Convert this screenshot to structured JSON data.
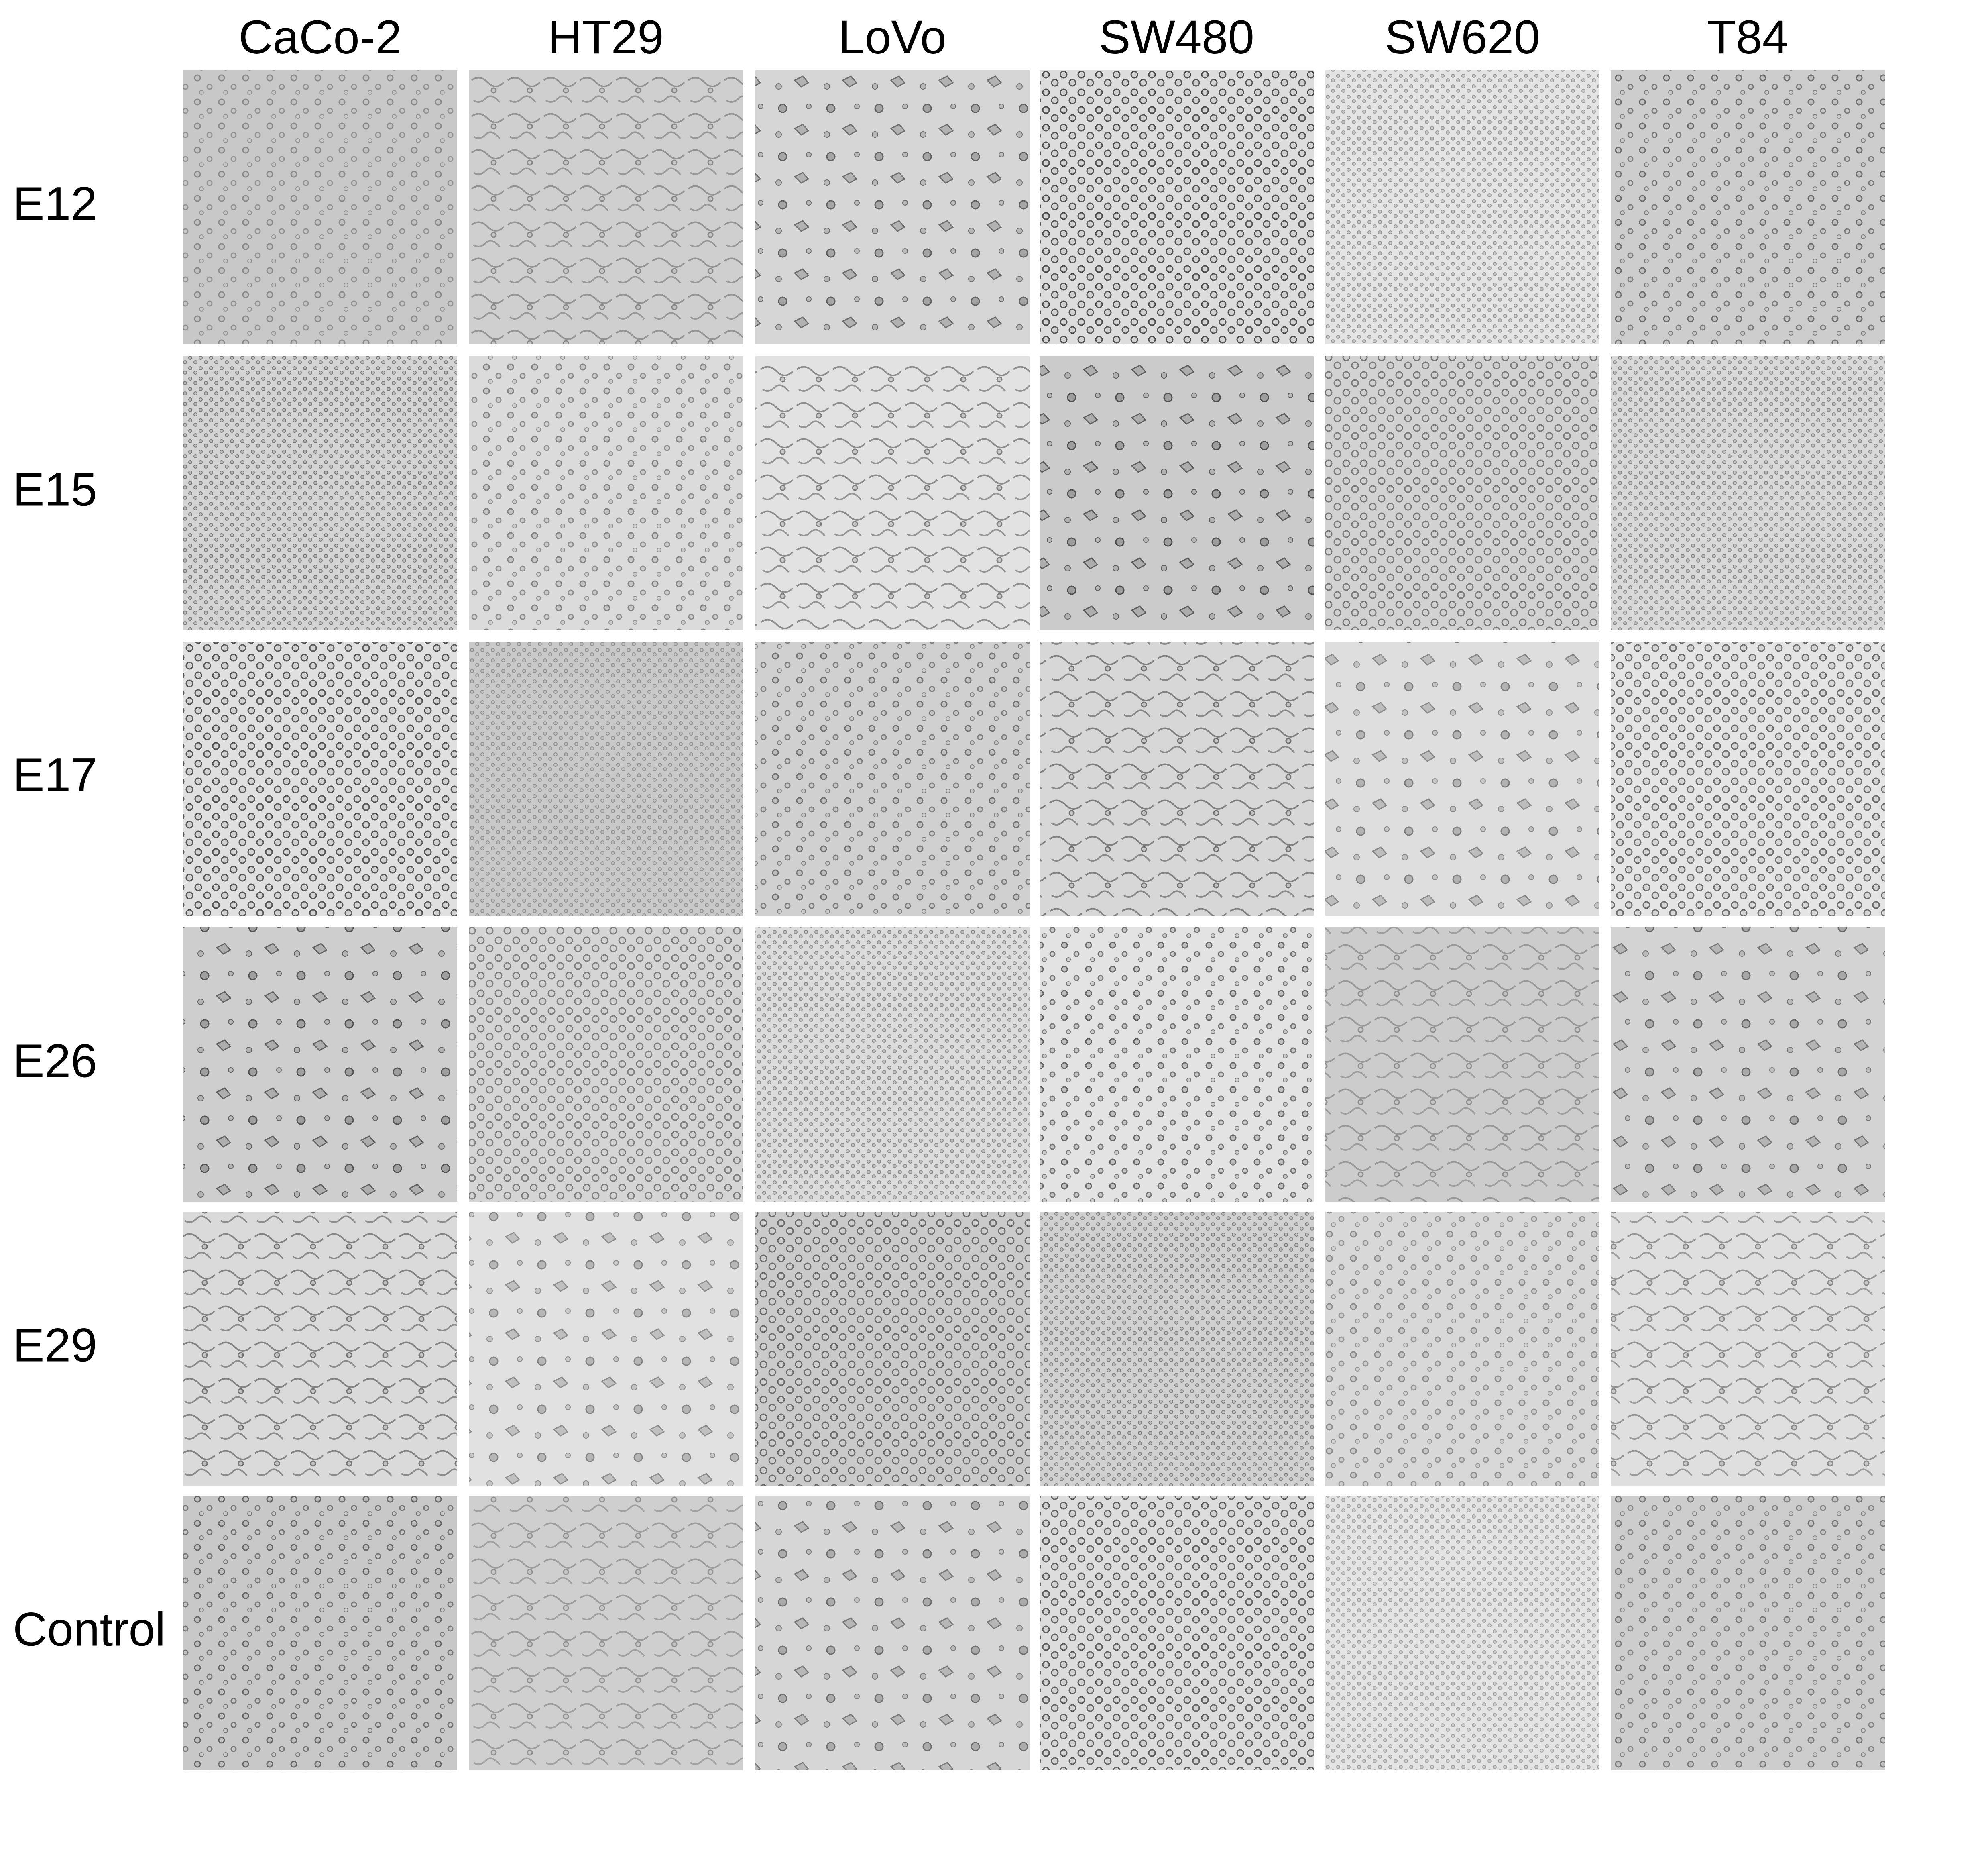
{
  "columns": [
    "CaCo-2",
    "HT29",
    "LoVo",
    "SW480",
    "SW620",
    "T84"
  ],
  "rows": [
    "E12",
    "E15",
    "E17",
    "E26",
    "E29",
    "Control"
  ]
}
